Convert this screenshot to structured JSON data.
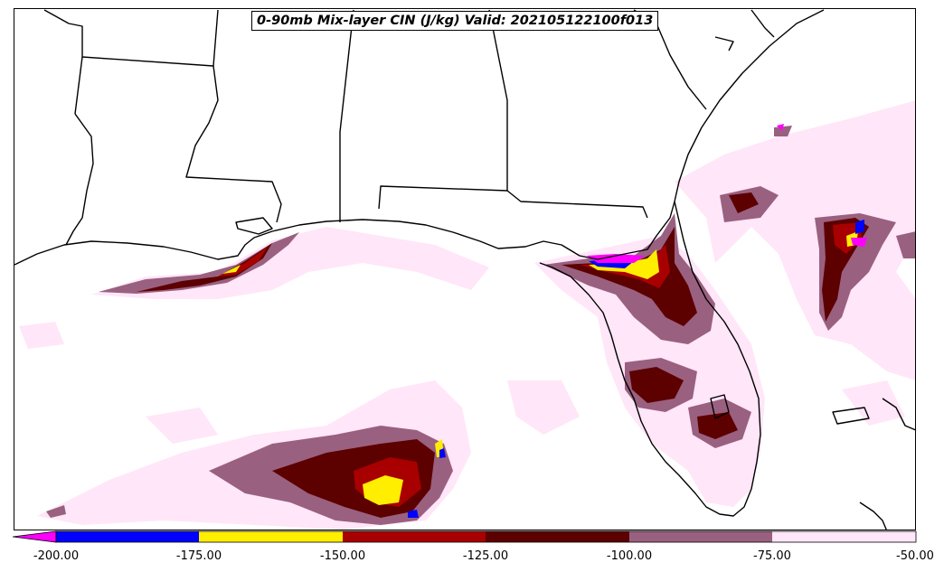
{
  "title": "0-90mb Mix-layer CIN (J/kg) Valid: 202105122100f013",
  "colorbar": {
    "ticks": [
      "-200.00",
      "-175.00",
      "-150.00",
      "-125.00",
      "-100.00",
      "-75.00",
      "-50.00"
    ],
    "bins": [
      {
        "range": "< -200",
        "color": "#ff00ff"
      },
      {
        "range": "-200 to -175",
        "color": "#0000ff"
      },
      {
        "range": "-175 to -150",
        "color": "#ffee00"
      },
      {
        "range": "-150 to -125",
        "color": "#a80000"
      },
      {
        "range": "-125 to -100",
        "color": "#5c0000"
      },
      {
        "range": "-100 to -75",
        "color": "#9a6080"
      },
      {
        "range": "-75 to -50",
        "color": "#ffe6f8"
      }
    ]
  }
}
